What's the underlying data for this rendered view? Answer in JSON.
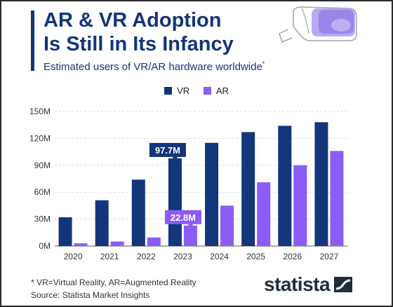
{
  "header": {
    "title_line1": "AR & VR Adoption",
    "title_line2": "Is Still in Its Infancy",
    "subtitle": "Estimated users of VR/AR hardware worldwide",
    "subtitle_mark": "*"
  },
  "footer": {
    "note": "* VR=Virtual Reality, AR=Augmented Reality",
    "source": "Source: Statista Market Insights",
    "brand": "statista"
  },
  "colors": {
    "vr": "#13357a",
    "ar": "#8b5cf6",
    "title": "#13357a"
  },
  "icons": [
    "vr-headset-icon",
    "statista-logo-icon"
  ],
  "chart_data": {
    "type": "bar",
    "title": "",
    "xlabel": "",
    "ylabel": "",
    "categories": [
      "2020",
      "2021",
      "2022",
      "2023",
      "2024",
      "2025",
      "2026",
      "2027"
    ],
    "series": [
      {
        "name": "VR",
        "values": [
          32,
          51,
          74,
          97.7,
          115,
          127,
          134,
          138
        ]
      },
      {
        "name": "AR",
        "values": [
          3,
          5,
          9.5,
          22.8,
          45,
          71,
          90,
          106
        ]
      }
    ],
    "ylim": [
      0,
      150
    ],
    "yticks": [
      0,
      30,
      60,
      90,
      120,
      150
    ],
    "ytick_labels": [
      "0M",
      "30M",
      "60M",
      "90M",
      "120M",
      "150M"
    ],
    "grid": true,
    "legend": "top-center",
    "annotations": [
      {
        "series": "VR",
        "category": "2023",
        "text": "97.7M"
      },
      {
        "series": "AR",
        "category": "2023",
        "text": "22.8M"
      }
    ]
  }
}
